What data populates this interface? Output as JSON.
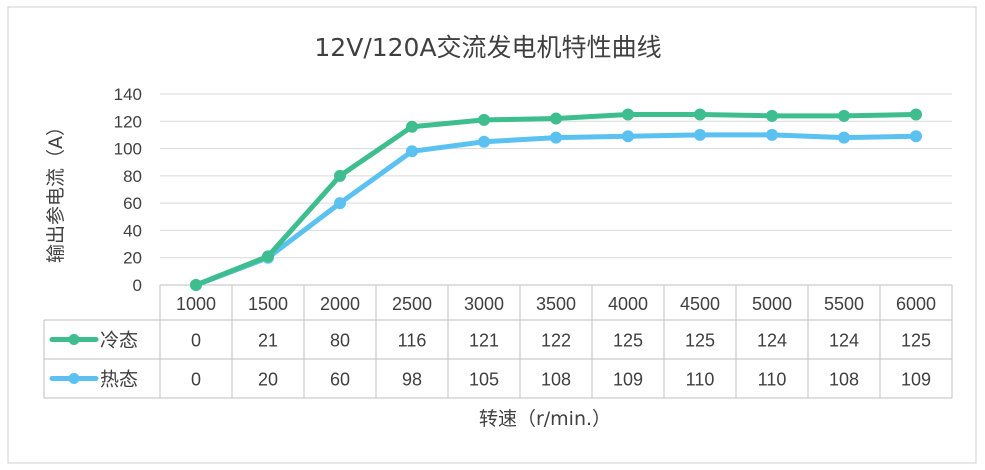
{
  "chart_data": {
    "type": "line",
    "title": "12V/120A交流发电机特性曲线",
    "xlabel": "转速（r/min.）",
    "ylabel": "输出参电流（A）",
    "categories": [
      "1000",
      "1500",
      "2000",
      "2500",
      "3000",
      "3500",
      "4000",
      "4500",
      "5000",
      "5500",
      "6000"
    ],
    "ylim": [
      0,
      140
    ],
    "yticks": [
      "0",
      "20",
      "40",
      "60",
      "80",
      "100",
      "120",
      "140"
    ],
    "grid": true,
    "legend": "table-left",
    "series": [
      {
        "name": "冷态",
        "color": "#3ebd8e",
        "values": [
          0,
          21,
          80,
          116,
          121,
          122,
          125,
          125,
          124,
          124,
          125
        ]
      },
      {
        "name": "热态",
        "color": "#5bc1f0",
        "values": [
          0,
          20,
          60,
          98,
          105,
          108,
          109,
          110,
          110,
          108,
          109
        ]
      }
    ]
  }
}
